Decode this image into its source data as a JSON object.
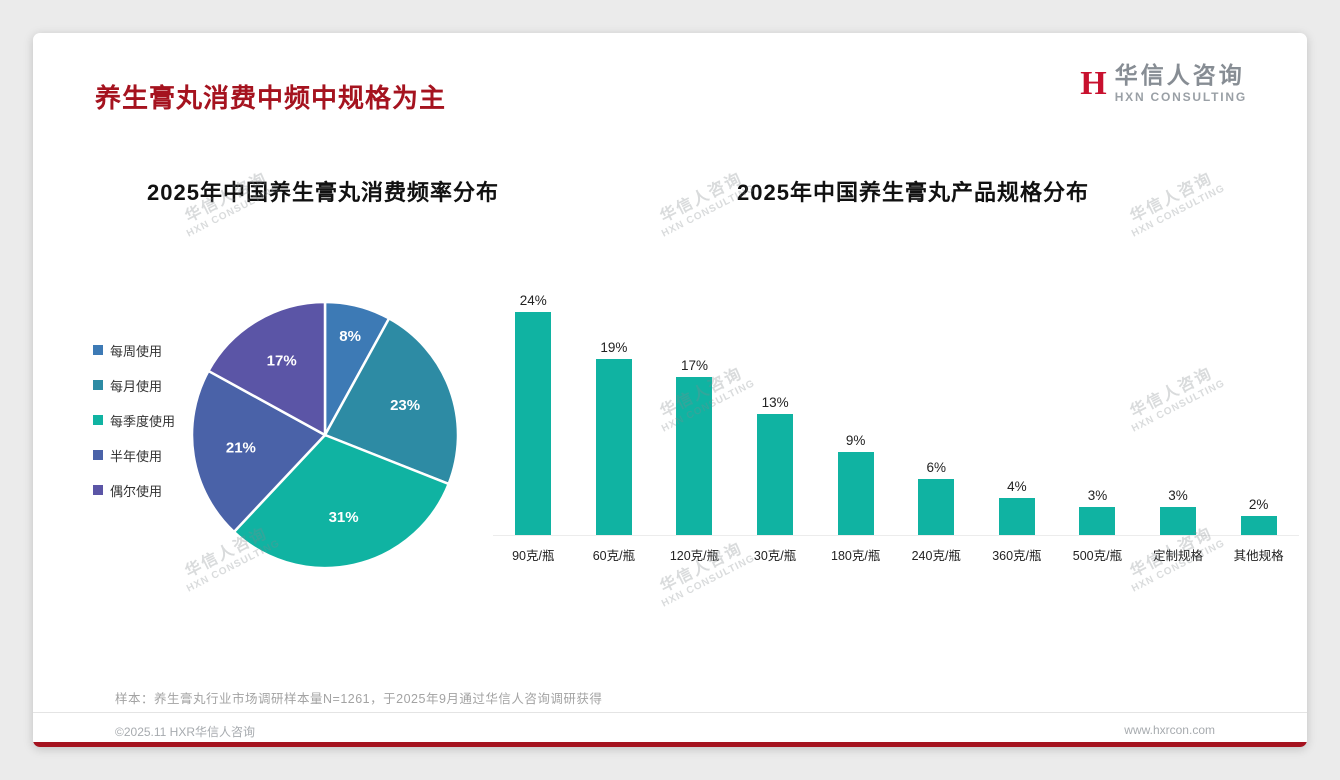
{
  "page": {
    "title": "养生膏丸消费中频中规格为主",
    "logo": {
      "mark": "H",
      "name": "华信人咨询",
      "subtitle": "HXN CONSULTING"
    },
    "watermark": {
      "line1": "华信人咨询",
      "line2": "HXN CONSULTING"
    },
    "footnote": "样本：养生膏丸行业市场调研样本量N=1261，于2025年9月通过华信人咨询调研获得",
    "footer": {
      "copyright": "©2025.11 HXR华信人咨询",
      "website": "www.hxrcon.com"
    }
  },
  "chart_data": [
    {
      "type": "pie",
      "title": "2025年中国养生膏丸消费频率分布",
      "labels": [
        "每周使用",
        "每月使用",
        "每季度使用",
        "半年使用",
        "偶尔使用"
      ],
      "values": [
        8,
        23,
        31,
        21,
        17
      ],
      "colors": [
        "#3d7ab5",
        "#2d8ba4",
        "#10b3a2",
        "#4a62a8",
        "#5b55a6"
      ],
      "value_suffix": "%",
      "legend_position": "left",
      "start_angle_deg": -90,
      "label_color": "#ffffff"
    },
    {
      "type": "bar",
      "title": "2025年中国养生膏丸产品规格分布",
      "categories": [
        "90克/瓶",
        "60克/瓶",
        "120克/瓶",
        "30克/瓶",
        "180克/瓶",
        "240克/瓶",
        "360克/瓶",
        "500克/瓶",
        "定制规格",
        "其他规格"
      ],
      "values": [
        24,
        19,
        17,
        13,
        9,
        6,
        4,
        3,
        3,
        2
      ],
      "value_suffix": "%",
      "bar_color": "#10b3a2",
      "ylim": [
        0,
        25
      ],
      "grid": false,
      "legend_position": "none"
    }
  ]
}
